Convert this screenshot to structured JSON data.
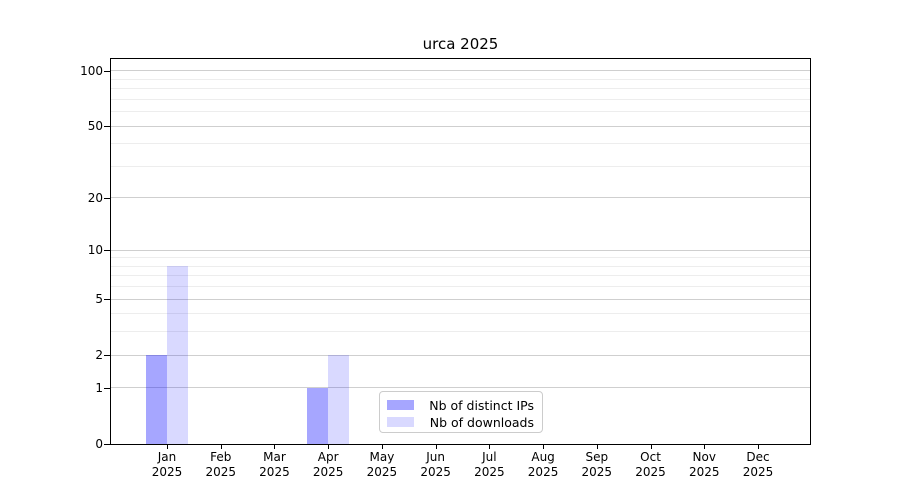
{
  "chart_data": {
    "type": "bar",
    "title": "urca 2025",
    "categories": [
      "Jan",
      "Feb",
      "Mar",
      "Apr",
      "May",
      "Jun",
      "Jul",
      "Aug",
      "Sep",
      "Oct",
      "Nov",
      "Dec"
    ],
    "year_label": "2025",
    "series": [
      {
        "name": "Nb of distinct IPs",
        "color": "rgba(0,0,255,0.35)",
        "values": [
          2,
          0,
          0,
          1,
          0,
          0,
          0,
          0,
          0,
          0,
          0,
          0
        ]
      },
      {
        "name": "Nb of downloads",
        "color": "rgba(0,0,255,0.15)",
        "values": [
          8,
          0,
          0,
          2,
          0,
          0,
          0,
          0,
          0,
          0,
          0,
          0
        ]
      }
    ],
    "yscale": "log1p",
    "ylim": [
      0,
      116
    ],
    "y_major_ticks": [
      0,
      1,
      2,
      5,
      10,
      20,
      50,
      100
    ],
    "y_minor_ticks": [
      3,
      4,
      6,
      7,
      8,
      9,
      30,
      40,
      60,
      70,
      80,
      90
    ],
    "grid": "horizontal",
    "legend_position": "lower center",
    "colors": {
      "major_grid": "#cfcfcf",
      "minor_grid": "#ededed",
      "spine": "#000000",
      "text": "#000000",
      "legend_border": "#cccccc"
    }
  }
}
